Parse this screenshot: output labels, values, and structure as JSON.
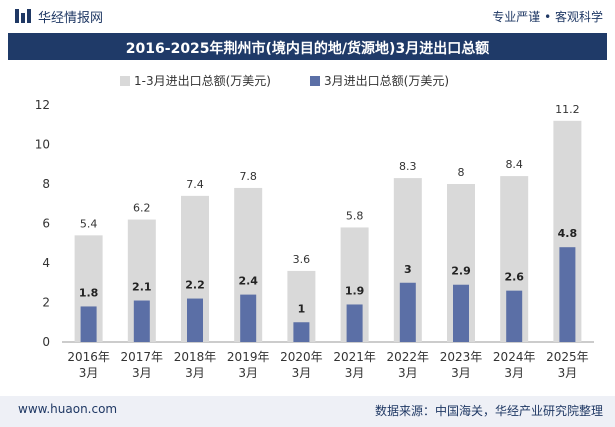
{
  "header": {
    "site_name": "华经情报网",
    "slogan": "专业严谨 • 客观科学"
  },
  "title": "2016-2025年荆州市(境内目的地/货源地)3月进出口总额",
  "footer": {
    "url": "www.huaon.com",
    "source": "数据来源：中国海关，华经产业研究院整理"
  },
  "colors": {
    "title_bar": "#1f3a68",
    "series_total": "#d9d9d9",
    "series_march": "#5b6fa6"
  },
  "chart_data": {
    "type": "bar",
    "categories": [
      "2016年\n3月",
      "2017年\n3月",
      "2018年\n3月",
      "2019年\n3月",
      "2020年\n3月",
      "2021年\n3月",
      "2022年\n3月",
      "2023年\n3月",
      "2024年\n3月",
      "2025年\n3月"
    ],
    "series": [
      {
        "name": "1-3月进出口总额(万美元)",
        "values": [
          5.4,
          6.2,
          7.4,
          7.8,
          3.6,
          5.8,
          8.3,
          8,
          8.4,
          11.2
        ]
      },
      {
        "name": "3月进出口总额(万美元)",
        "values": [
          1.8,
          2.1,
          2.2,
          2.4,
          1,
          1.9,
          3,
          2.9,
          2.6,
          4.8
        ]
      }
    ],
    "ylim": [
      0,
      12
    ],
    "yticks": [
      0,
      2,
      4,
      6,
      8,
      10,
      12
    ],
    "legend_position": "top",
    "grid": false
  }
}
